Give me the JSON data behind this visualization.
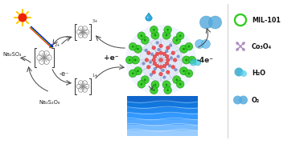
{
  "bg_color": "#ffffff",
  "sun_color": "#ee2200",
  "sun_ray_color": "#ffcc00",
  "ray_colors": [
    "#ff0000",
    "#ff8800",
    "#00cc00",
    "#0000ff"
  ],
  "mof_green": "#33cc22",
  "mof_green_dark": "#118811",
  "mof_inner_bg": "#e0e8f8",
  "mof_red_dot": "#dd4444",
  "mof_line_color": "#9999bb",
  "water_colors": [
    "#1166dd",
    "#2277ee",
    "#3388ff",
    "#55aaff",
    "#77bbff",
    "#99ccff",
    "#bbddff"
  ],
  "drop_color": "#33aadd",
  "drop_dark": "#1188bb",
  "o2_color_big": "#55aadd",
  "o2_color_small": "#44ccdd",
  "o2_color_tiny": "#66bbee",
  "arrow_color": "#444444",
  "complex_color": "#888888",
  "bracket_color": "#333333",
  "text_color": "#222222",
  "legend_green": "#33cc22",
  "legend_purple": "#aa88bb",
  "legend_h2o": "#44aacc",
  "legend_o2": "#55aadd",
  "text_plus_e": "+e⁻",
  "text_minus_e": "-e⁻",
  "text_minus_4e": "-4e⁻",
  "text_na2so4": "Na₂SO₄",
  "text_na2s2o8": "Na₂S₂O₈",
  "legend_mof": "MIL-101",
  "legend_co3o4": "Co₃O₄",
  "legend_h2o_label": "H₂O",
  "legend_o2_label": "O₂"
}
